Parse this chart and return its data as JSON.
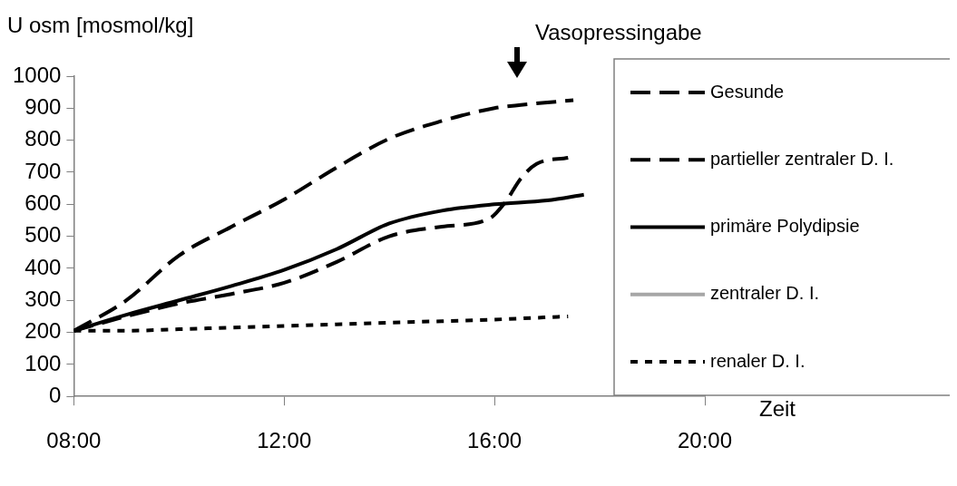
{
  "chart_data": {
    "type": "line",
    "ylabel": "U osm [mosmol/kg]",
    "xlabel": "Zeit",
    "xlim": [
      8,
      20
    ],
    "xticks": [
      {
        "value": 8,
        "label": "08:00"
      },
      {
        "value": 12,
        "label": "12:00"
      },
      {
        "value": 16,
        "label": "16:00"
      },
      {
        "value": 20,
        "label": "20:00"
      }
    ],
    "ylim": [
      0,
      1000
    ],
    "yticks": [
      0,
      100,
      200,
      300,
      400,
      500,
      600,
      700,
      800,
      900,
      1000
    ],
    "grid": false,
    "legend": "right",
    "marker": "none",
    "annotations": [
      "Vasopressingabe"
    ],
    "series": [
      {
        "name": "Gesunde",
        "color": "#000000",
        "line_style": "dashed",
        "x": [
          8,
          9,
          10,
          11,
          12,
          13,
          14,
          15,
          16,
          16.5,
          17.5
        ],
        "values": [
          205,
          300,
          440,
          530,
          615,
          715,
          805,
          860,
          900,
          910,
          925
        ]
      },
      {
        "name": "partieller zentraler D. I.",
        "color": "#000000",
        "line_style": "dashed",
        "x": [
          8,
          9,
          10,
          11,
          12,
          13,
          14,
          15,
          15.9,
          16.2,
          16.5,
          16.8,
          17.4
        ],
        "values": [
          205,
          250,
          290,
          320,
          355,
          420,
          500,
          530,
          555,
          605,
          680,
          726,
          745
        ]
      },
      {
        "name": "primäre Polydipsie",
        "color": "#000000",
        "line_style": "solid",
        "x": [
          8,
          9,
          10,
          11,
          12,
          13,
          14,
          15,
          16,
          17,
          17.7
        ],
        "values": [
          205,
          255,
          300,
          345,
          395,
          460,
          540,
          580,
          600,
          612,
          630
        ]
      },
      {
        "name": "zentraler D. I.",
        "color": "#a6a6a6",
        "line_style": "solid"
      },
      {
        "name": "renaler D. I.",
        "color": "#000000",
        "line_style": "dotted",
        "x": [
          8,
          9,
          10,
          11,
          12,
          13,
          14,
          15,
          16,
          17.4
        ],
        "values": [
          205,
          205,
          210,
          215,
          220,
          225,
          230,
          235,
          240,
          250
        ]
      }
    ]
  }
}
